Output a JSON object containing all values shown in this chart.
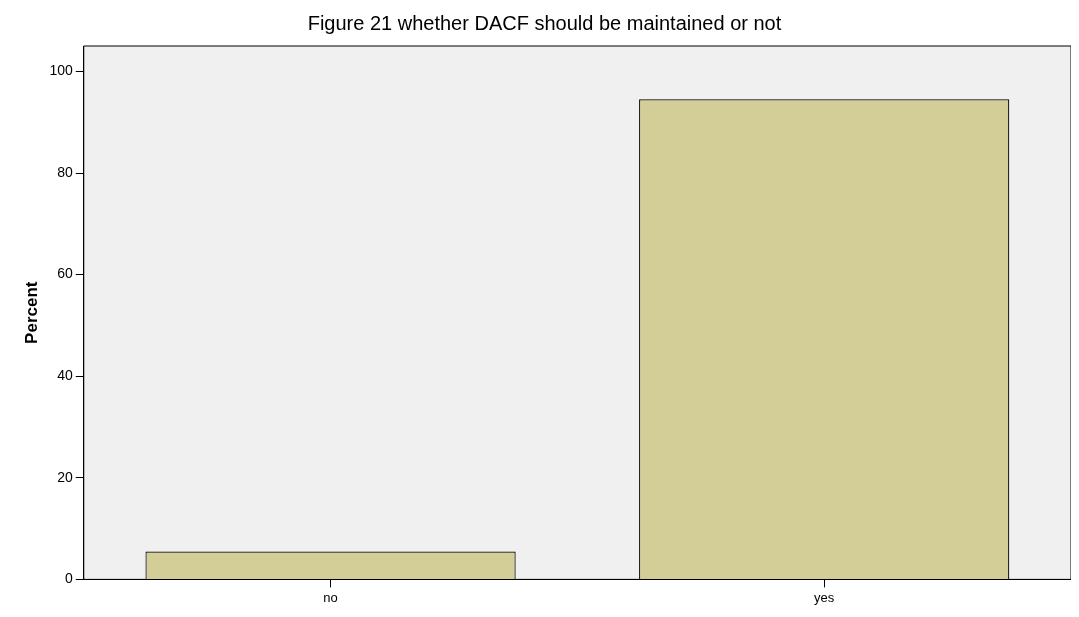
{
  "chart_data": {
    "type": "bar",
    "title": "Figure 21 whether DACF should be maintained or not",
    "ylabel": "Percent",
    "categories": [
      "no",
      "yes"
    ],
    "values": [
      5.5,
      94.5
    ],
    "color": "#d3cd98",
    "ylim": [
      0,
      105
    ],
    "yticks": [
      0,
      20,
      40,
      60,
      80,
      100
    ],
    "grid": false,
    "legend": false
  }
}
